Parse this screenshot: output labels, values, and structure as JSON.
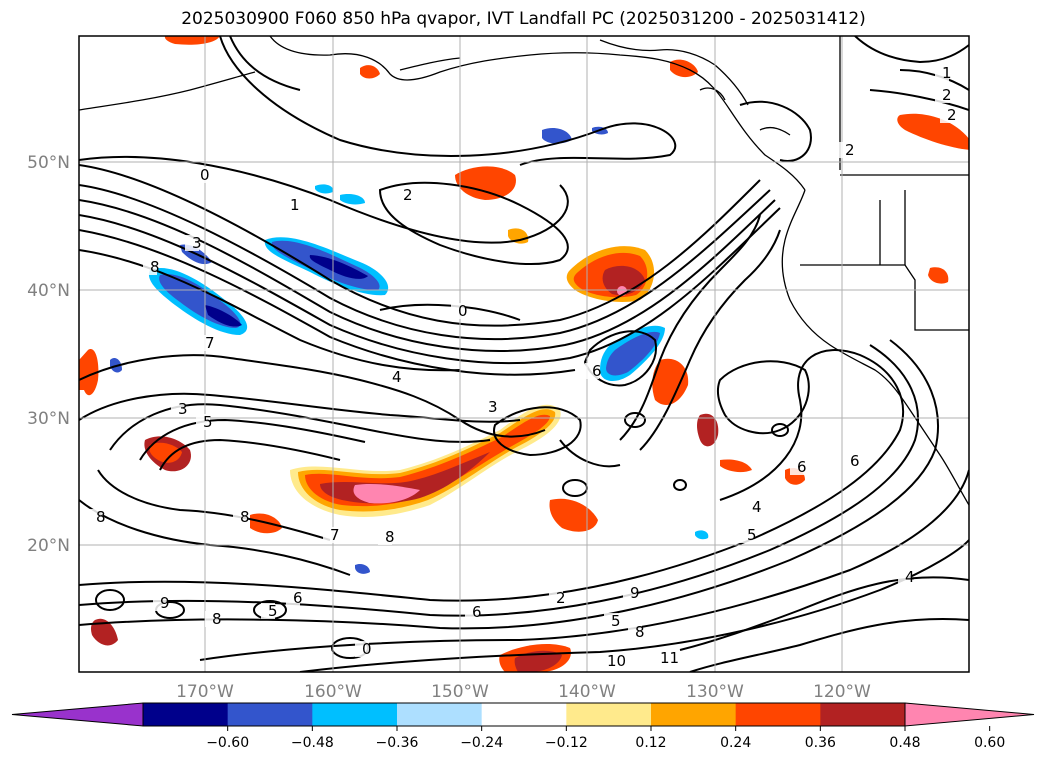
{
  "title": "2025030900 F060 850 hPa qvapor, IVT Landfall PC (2025031200 - 2025031412)",
  "map": {
    "lat_ticks": [
      "50°N",
      "40°N",
      "30°N",
      "20°N"
    ],
    "lon_ticks": [
      "170°W",
      "160°W",
      "150°W",
      "140°W",
      "130°W",
      "120°W"
    ],
    "contour_labels": [
      "0",
      "2",
      "1",
      "3",
      "8",
      "7",
      "4",
      "0",
      "6",
      "3",
      "5",
      "3",
      "4",
      "8",
      "7",
      "8",
      "9",
      "8",
      "5",
      "6",
      "8",
      "6",
      "6",
      "5",
      "4",
      "2",
      "6",
      "5",
      "8",
      "9",
      "10",
      "11",
      "0",
      "2",
      "1",
      "2",
      "2"
    ],
    "colors": {
      "land_outline": "#000000",
      "grid": "#b0b0b0"
    }
  },
  "colorbar": {
    "ticks": [
      "−0.60",
      "−0.48",
      "−0.36",
      "−0.24",
      "−0.12",
      "0.12",
      "0.24",
      "0.36",
      "0.48",
      "0.60"
    ],
    "colors": [
      "#9932CC",
      "#00008B",
      "#3355CC",
      "#00BFFF",
      "#ADDFFF",
      "#FFFFFF",
      "#FFEA8C",
      "#FFA500",
      "#FF4500",
      "#B22222",
      "#FF85B0"
    ]
  }
}
